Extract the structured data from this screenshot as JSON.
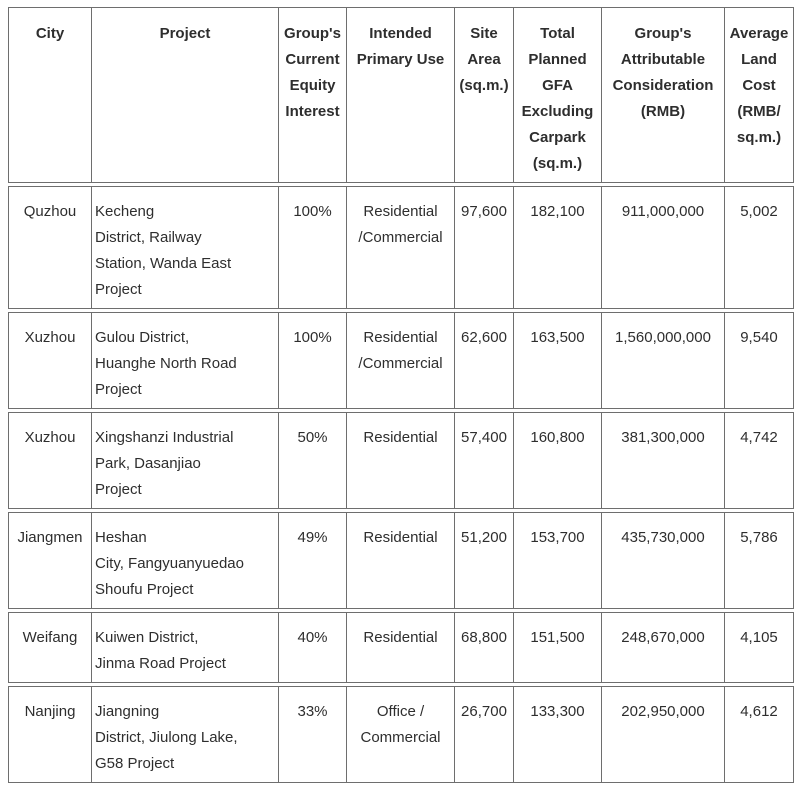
{
  "table": {
    "headers": [
      [
        "City"
      ],
      [
        "Project"
      ],
      [
        "Group's",
        "Current",
        "Equity",
        "Interest"
      ],
      [
        "Intended",
        "Primary Use"
      ],
      [
        "Site",
        "Area",
        "(sq.m.)"
      ],
      [
        "Total",
        "Planned",
        "GFA",
        "Excluding",
        "Carpark",
        "(sq.m.)"
      ],
      [
        "Group's",
        "Attributable",
        "Consideration",
        "(RMB)"
      ],
      [
        "Average",
        "Land",
        "Cost",
        "(RMB/",
        "sq.m.)"
      ]
    ],
    "rows": [
      {
        "city": "Quzhou",
        "project": [
          "Kecheng",
          "District, Railway",
          "Station, Wanda East",
          "Project"
        ],
        "equity": "100%",
        "use": [
          "Residential",
          "/Commercial"
        ],
        "site_area": "97,600",
        "gfa": "182,100",
        "consideration": "911,000,000",
        "avg_land_cost": "5,002"
      },
      {
        "city": "Xuzhou",
        "project": [
          "Gulou District,",
          "Huanghe North Road",
          "Project"
        ],
        "equity": "100%",
        "use": [
          "Residential",
          "/Commercial"
        ],
        "site_area": "62,600",
        "gfa": "163,500",
        "consideration": "1,560,000,000",
        "avg_land_cost": "9,540"
      },
      {
        "city": "Xuzhou",
        "project": [
          "Xingshanzi Industrial",
          "Park, Dasanjiao",
          "Project"
        ],
        "equity": "50%",
        "use": [
          "Residential"
        ],
        "site_area": "57,400",
        "gfa": "160,800",
        "consideration": "381,300,000",
        "avg_land_cost": "4,742"
      },
      {
        "city": "Jiangmen",
        "project": [
          "Heshan",
          "City, Fangyuanyuedao",
          "Shoufu Project"
        ],
        "equity": "49%",
        "use": [
          "Residential"
        ],
        "site_area": "51,200",
        "gfa": "153,700",
        "consideration": "435,730,000",
        "avg_land_cost": "5,786"
      },
      {
        "city": "Weifang",
        "project": [
          "Kuiwen District,",
          "Jinma Road Project"
        ],
        "equity": "40%",
        "use": [
          "Residential"
        ],
        "site_area": "68,800",
        "gfa": "151,500",
        "consideration": "248,670,000",
        "avg_land_cost": "4,105"
      },
      {
        "city": "Nanjing",
        "project": [
          "Jiangning",
          "District, Jiulong Lake,",
          "G58 Project"
        ],
        "equity": "33%",
        "use": [
          "Office /",
          "Commercial"
        ],
        "site_area": "26,700",
        "gfa": "133,300",
        "consideration": "202,950,000",
        "avg_land_cost": "4,612"
      }
    ]
  }
}
